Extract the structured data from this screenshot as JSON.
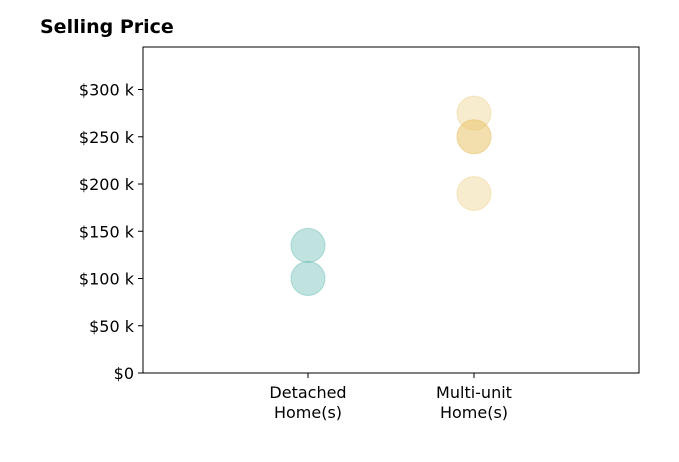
{
  "chart_data": {
    "type": "scatter",
    "title": "Selling Price",
    "xlabel": "",
    "ylabel": "",
    "categories": [
      "Detached\nHome(s)",
      "Multi-unit\nHome(s)"
    ],
    "ylim": [
      0,
      345000
    ],
    "yticks": [
      0,
      50000,
      100000,
      150000,
      200000,
      250000,
      300000
    ],
    "ytick_labels": [
      "$0",
      "$50 k",
      "$100 k",
      "$150 k",
      "$200 k",
      "$250 k",
      "$300 k"
    ],
    "grid": false,
    "series": [
      {
        "category": "Detached\nHome(s)",
        "color": "#3aa89f",
        "values": [
          135000,
          100000
        ]
      },
      {
        "category": "Multi-unit\nHome(s)",
        "color": "#e8c46a",
        "values": [
          275000,
          250000,
          250000,
          190000
        ]
      }
    ]
  }
}
